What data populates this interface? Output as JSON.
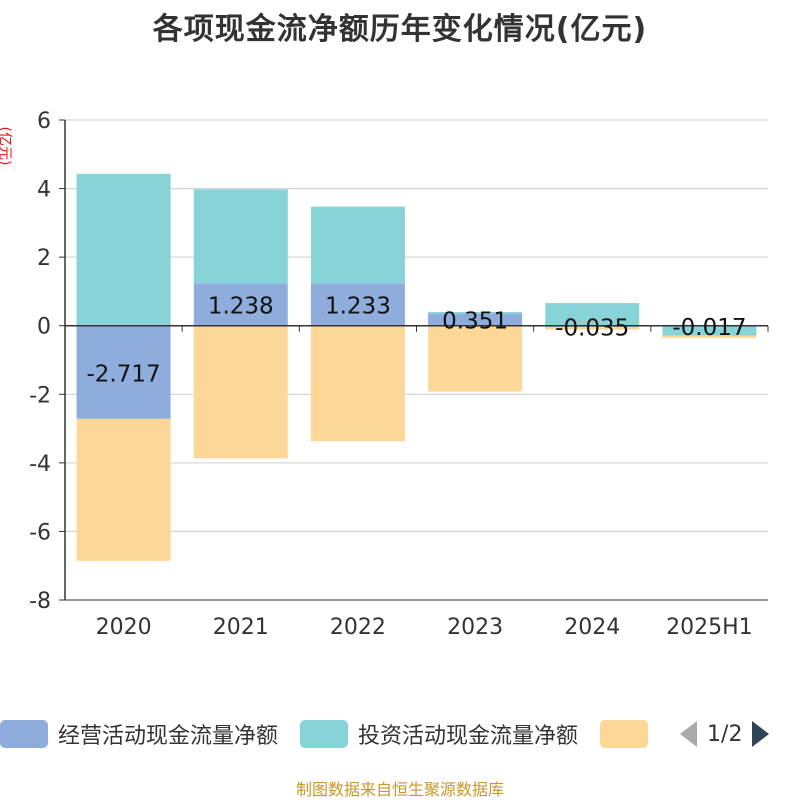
{
  "title": "各项现金流净额历年变化情况(亿元)",
  "unit_label": "(亿元)",
  "colors": {
    "operating": "#8eaddc",
    "investing": "#86d4d8",
    "financing": "#fdd797",
    "axis": "#333333",
    "grid": "#cccccc",
    "unit": "#e8161c",
    "footer": "#c8962a"
  },
  "chart_data": {
    "type": "bar",
    "stacked": true,
    "categories": [
      "2020",
      "2021",
      "2022",
      "2023",
      "2024",
      "2025H1"
    ],
    "series": [
      {
        "name": "经营活动现金流量净额",
        "values": [
          -2.717,
          1.238,
          1.233,
          0.351,
          -0.035,
          -0.017
        ],
        "labels": [
          "-2.717",
          "1.238",
          "1.233",
          "0.351",
          "-0.035",
          "-0.017"
        ]
      },
      {
        "name": "投资活动现金流量净额",
        "values": [
          4.43,
          2.74,
          2.24,
          0.05,
          0.66,
          -0.27
        ]
      },
      {
        "values": [
          -4.14,
          -3.87,
          -3.37,
          -1.92,
          -0.08,
          -0.07
        ]
      }
    ],
    "ylim": [
      -8,
      6
    ],
    "yticks": [
      6,
      4,
      2,
      0,
      -2,
      -4,
      -6,
      -8
    ],
    "grid": true,
    "legend_position": "bottom"
  },
  "legend": {
    "items": [
      {
        "label": "经营活动现金流量净额",
        "color": "#8eaddc"
      },
      {
        "label": "投资活动现金流量净额",
        "color": "#86d4d8"
      },
      {
        "label": "",
        "color": "#fdd797"
      }
    ],
    "page": "1/2"
  },
  "footer": "制图数据来自恒生聚源数据库"
}
